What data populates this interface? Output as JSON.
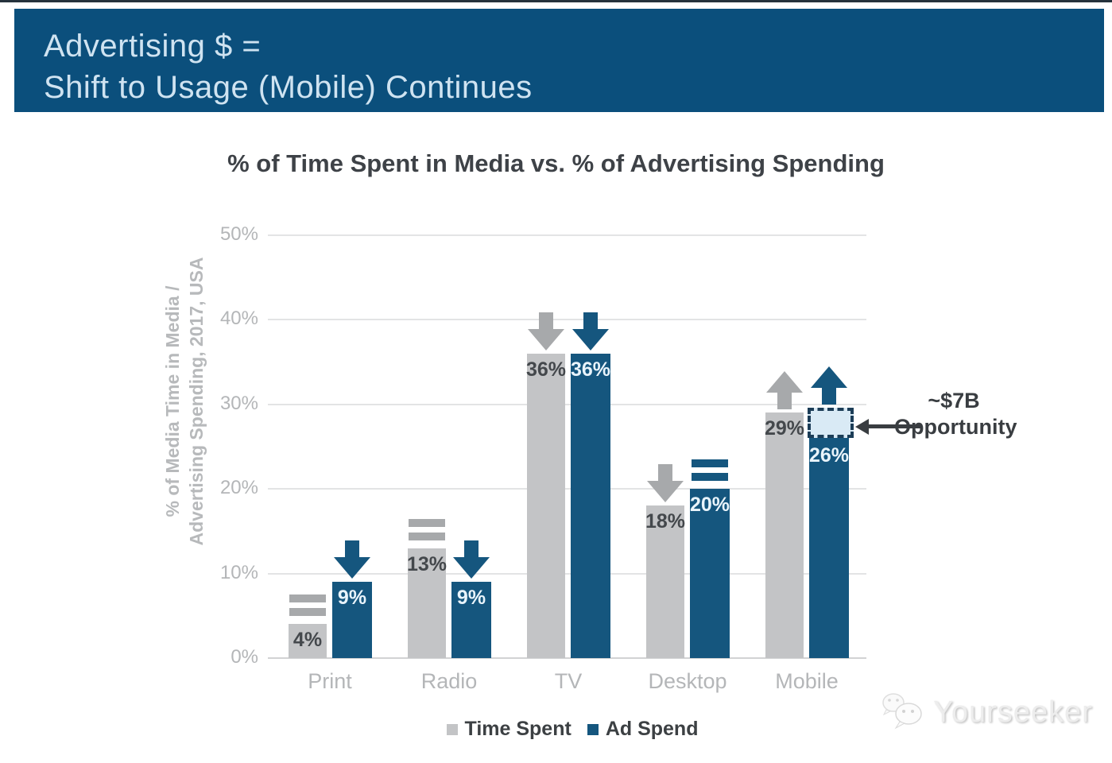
{
  "banner": {
    "line1": "Advertising $ =",
    "line2": "Shift to Usage (Mobile) Continues"
  },
  "chart": {
    "title": "% of Time Spent in Media vs. % of Advertising Spending",
    "y_axis_label_line1": "% of Media Time in Media /",
    "y_axis_label_line2": "Advertising Spending, 2017, USA"
  },
  "chart_data": {
    "type": "bar",
    "title": "% of Time Spent in Media vs. % of Advertising Spending",
    "ylabel": "% of Media Time in Media / Advertising Spending, 2017, USA",
    "categories": [
      "Print",
      "Radio",
      "TV",
      "Desktop",
      "Mobile"
    ],
    "series": [
      {
        "name": "Time Spent",
        "values": [
          4,
          13,
          36,
          18,
          29
        ],
        "trends": [
          "flat",
          "flat",
          "down",
          "down",
          "up"
        ]
      },
      {
        "name": "Ad Spend",
        "values": [
          9,
          9,
          36,
          20,
          26
        ],
        "trends": [
          "down",
          "down",
          "down",
          "flat",
          "up"
        ]
      }
    ],
    "y_tick_labels": [
      "50%",
      "40%",
      "30%",
      "20%",
      "10%",
      "0%"
    ],
    "y_tick_values": [
      50,
      40,
      30,
      20,
      10,
      0
    ],
    "ylim": [
      0,
      50
    ],
    "grid": true,
    "legend_position": "bottom",
    "opportunity_box": {
      "category_index": 4,
      "series_index": 1,
      "top_value": 29.6,
      "bottom_value": 26
    }
  },
  "annotation": {
    "line1": "~$7B",
    "line2": "Opportunity"
  },
  "legend": [
    {
      "label": "Time Spent",
      "color": "#c3c4c6"
    },
    {
      "label": "Ad Spend",
      "color": "#15567e"
    }
  ],
  "watermark": {
    "text": "Yourseeker"
  },
  "colors": {
    "banner_bg": "#0b4f7c",
    "banner_text": "#cfe3f1",
    "bar_gray": "#c3c4c6",
    "bar_blue": "#15567e",
    "trend_gray": "#a7a9ab",
    "trend_blue": "#15567e",
    "label_on_gray": "#44484c",
    "label_on_blue": "#e9f4fb",
    "axis_text": "#b4b6b8",
    "gridline": "#e3e4e5",
    "baseline": "#d2d3d4",
    "title_text": "#3e4247",
    "annotation_text": "#393d41",
    "opportunity_fill": "#d9eaf5",
    "opportunity_border": "#1c3d57"
  }
}
